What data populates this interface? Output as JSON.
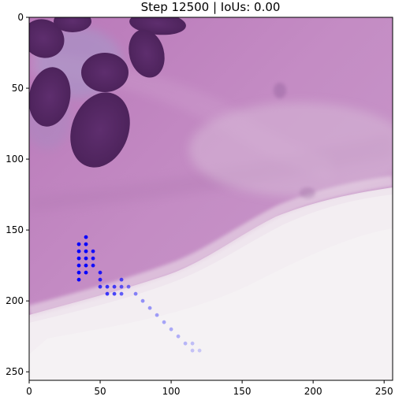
{
  "chart_data": {
    "type": "scatter",
    "title": "Step 12500 | IoUs: 0.00",
    "xlabel": "",
    "ylabel": "",
    "xlim": [
      0,
      256
    ],
    "ylim": [
      256,
      0
    ],
    "x_ticks": [
      0,
      50,
      100,
      150,
      200,
      250
    ],
    "y_ticks": [
      0,
      50,
      100,
      150,
      200,
      250
    ],
    "x_tick_labels": [
      "0",
      "50",
      "100",
      "150",
      "200",
      "250"
    ],
    "y_tick_labels": [
      "0",
      "50",
      "100",
      "150",
      "200",
      "250"
    ],
    "grid": false,
    "background": "histology image (pink/purple H&E stained tissue, dark purple nuclei top-left, pale white region bottom-right)",
    "series": [
      {
        "color": "#0000ff",
        "points": [
          {
            "x": 40,
            "y": 155,
            "alpha": 1.0
          },
          {
            "x": 35,
            "y": 160,
            "alpha": 1.0
          },
          {
            "x": 40,
            "y": 160,
            "alpha": 1.0
          },
          {
            "x": 35,
            "y": 165,
            "alpha": 1.0
          },
          {
            "x": 40,
            "y": 165,
            "alpha": 1.0
          },
          {
            "x": 45,
            "y": 165,
            "alpha": 0.9
          },
          {
            "x": 35,
            "y": 170,
            "alpha": 1.0
          },
          {
            "x": 40,
            "y": 170,
            "alpha": 1.0
          },
          {
            "x": 45,
            "y": 170,
            "alpha": 0.9
          },
          {
            "x": 35,
            "y": 175,
            "alpha": 1.0
          },
          {
            "x": 40,
            "y": 175,
            "alpha": 1.0
          },
          {
            "x": 45,
            "y": 175,
            "alpha": 0.9
          },
          {
            "x": 35,
            "y": 180,
            "alpha": 1.0
          },
          {
            "x": 40,
            "y": 180,
            "alpha": 1.0
          },
          {
            "x": 50,
            "y": 180,
            "alpha": 0.85
          },
          {
            "x": 35,
            "y": 185,
            "alpha": 1.0
          },
          {
            "x": 50,
            "y": 185,
            "alpha": 0.8
          },
          {
            "x": 65,
            "y": 185,
            "alpha": 0.65
          },
          {
            "x": 50,
            "y": 190,
            "alpha": 0.75
          },
          {
            "x": 55,
            "y": 190,
            "alpha": 0.75
          },
          {
            "x": 60,
            "y": 190,
            "alpha": 0.7
          },
          {
            "x": 65,
            "y": 190,
            "alpha": 0.6
          },
          {
            "x": 70,
            "y": 190,
            "alpha": 0.5
          },
          {
            "x": 55,
            "y": 195,
            "alpha": 0.75
          },
          {
            "x": 60,
            "y": 195,
            "alpha": 0.7
          },
          {
            "x": 65,
            "y": 195,
            "alpha": 0.6
          },
          {
            "x": 75,
            "y": 195,
            "alpha": 0.45
          },
          {
            "x": 80,
            "y": 200,
            "alpha": 0.4
          },
          {
            "x": 85,
            "y": 205,
            "alpha": 0.38
          },
          {
            "x": 90,
            "y": 210,
            "alpha": 0.35
          },
          {
            "x": 95,
            "y": 215,
            "alpha": 0.32
          },
          {
            "x": 100,
            "y": 220,
            "alpha": 0.3
          },
          {
            "x": 105,
            "y": 225,
            "alpha": 0.28
          },
          {
            "x": 110,
            "y": 230,
            "alpha": 0.25
          },
          {
            "x": 115,
            "y": 230,
            "alpha": 0.22
          },
          {
            "x": 115,
            "y": 235,
            "alpha": 0.2
          },
          {
            "x": 120,
            "y": 235,
            "alpha": 0.18
          }
        ]
      }
    ]
  }
}
